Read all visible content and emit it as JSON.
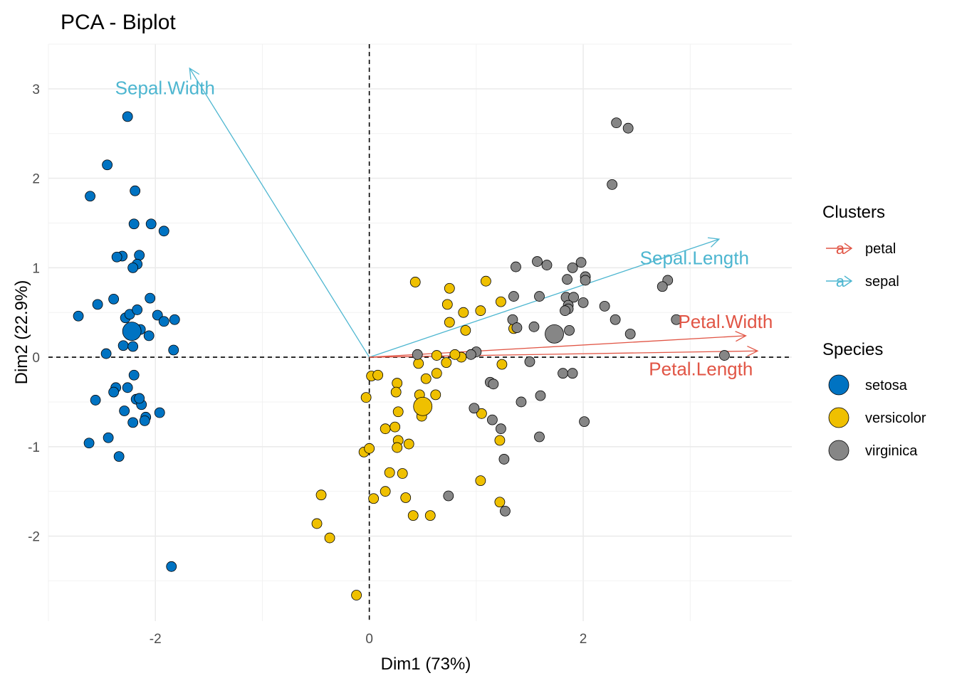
{
  "chart_data": {
    "type": "scatter",
    "title": "PCA - Biplot",
    "xlabel": "Dim1 (73%)",
    "ylabel": "Dim2 (22.9%)",
    "xlim": [
      -3,
      3.95
    ],
    "ylim": [
      -2.95,
      3.5
    ],
    "x_ticks": [
      -2,
      0,
      2
    ],
    "y_ticks": [
      -2,
      -1,
      0,
      1,
      2,
      3
    ],
    "grid": true,
    "reference_lines": {
      "x": 0,
      "y": 0,
      "style": "dashed"
    },
    "legend_position": "right",
    "legends": {
      "clusters": {
        "title": "Clusters",
        "items": [
          {
            "name": "petal",
            "color": "#E15545"
          },
          {
            "name": "sepal",
            "color": "#4DB6D0"
          }
        ]
      },
      "species": {
        "title": "Species",
        "items": [
          {
            "name": "setosa",
            "color": "#0073C2"
          },
          {
            "name": "versicolor",
            "color": "#EFC000"
          },
          {
            "name": "virginica",
            "color": "#868686"
          }
        ]
      }
    },
    "arrows": [
      {
        "label": "Sepal.Width",
        "cluster": "sepal",
        "x": -1.68,
        "y": 3.23
      },
      {
        "label": "Sepal.Length",
        "cluster": "sepal",
        "x": 3.27,
        "y": 1.32
      },
      {
        "label": "Petal.Width",
        "cluster": "petal",
        "x": 3.52,
        "y": 0.24
      },
      {
        "label": "Petal.Length",
        "cluster": "petal",
        "x": 3.63,
        "y": 0.07
      }
    ],
    "arrow_labels": [
      {
        "label": "Sepal.Width",
        "cluster": "sepal",
        "x": -1.91,
        "y": 3.01
      },
      {
        "label": "Sepal.Length",
        "cluster": "sepal",
        "x": 3.04,
        "y": 1.11
      },
      {
        "label": "Petal.Width",
        "cluster": "petal",
        "x": 3.33,
        "y": 0.4
      },
      {
        "label": "Petal.Length",
        "cluster": "petal",
        "x": 3.1,
        "y": -0.13
      }
    ],
    "centroids": [
      {
        "species": "setosa",
        "x": -2.22,
        "y": 0.29
      },
      {
        "species": "versicolor",
        "x": 0.5,
        "y": -0.55
      },
      {
        "species": "virginica",
        "x": 1.73,
        "y": 0.26
      }
    ],
    "series": [
      {
        "name": "setosa",
        "points": [
          [
            -2.26,
            2.69
          ],
          [
            -2.45,
            2.15
          ],
          [
            -2.61,
            1.8
          ],
          [
            -2.19,
            1.86
          ],
          [
            -2.2,
            1.49
          ],
          [
            -2.04,
            1.49
          ],
          [
            -1.92,
            1.41
          ],
          [
            -2.15,
            1.14
          ],
          [
            -2.31,
            1.13
          ],
          [
            -2.36,
            1.12
          ],
          [
            -2.17,
            1.04
          ],
          [
            -2.21,
            1.0
          ],
          [
            -2.05,
            0.66
          ],
          [
            -2.39,
            0.65
          ],
          [
            -2.54,
            0.59
          ],
          [
            -2.72,
            0.46
          ],
          [
            -2.28,
            0.44
          ],
          [
            -2.24,
            0.48
          ],
          [
            -2.17,
            0.53
          ],
          [
            -1.98,
            0.47
          ],
          [
            -1.82,
            0.42
          ],
          [
            -1.92,
            0.4
          ],
          [
            -2.14,
            0.31
          ],
          [
            -2.06,
            0.24
          ],
          [
            -2.3,
            0.13
          ],
          [
            -2.21,
            0.12
          ],
          [
            -2.46,
            0.04
          ],
          [
            -1.83,
            0.08
          ],
          [
            -2.2,
            -0.2
          ],
          [
            -2.26,
            -0.34
          ],
          [
            -2.37,
            -0.34
          ],
          [
            -2.39,
            -0.39
          ],
          [
            -2.18,
            -0.47
          ],
          [
            -2.13,
            -0.53
          ],
          [
            -2.15,
            -0.46
          ],
          [
            -2.56,
            -0.48
          ],
          [
            -2.29,
            -0.6
          ],
          [
            -2.09,
            -0.67
          ],
          [
            -1.96,
            -0.62
          ],
          [
            -2.1,
            -0.71
          ],
          [
            -2.21,
            -0.73
          ],
          [
            -2.62,
            -0.96
          ],
          [
            -2.44,
            -0.9
          ],
          [
            -2.34,
            -1.11
          ],
          [
            -1.85,
            -2.34
          ]
        ]
      },
      {
        "name": "versicolor",
        "points": [
          [
            0.43,
            0.84
          ],
          [
            0.75,
            0.77
          ],
          [
            1.09,
            0.85
          ],
          [
            0.73,
            0.59
          ],
          [
            0.88,
            0.5
          ],
          [
            1.04,
            0.52
          ],
          [
            1.23,
            0.62
          ],
          [
            0.75,
            0.39
          ],
          [
            0.9,
            0.3
          ],
          [
            1.35,
            0.32
          ],
          [
            0.63,
            0.02
          ],
          [
            0.86,
            0.0
          ],
          [
            0.72,
            -0.06
          ],
          [
            0.46,
            -0.07
          ],
          [
            0.8,
            0.03
          ],
          [
            1.24,
            -0.08
          ],
          [
            0.02,
            -0.21
          ],
          [
            0.08,
            -0.2
          ],
          [
            0.26,
            -0.29
          ],
          [
            0.25,
            -0.39
          ],
          [
            0.47,
            -0.42
          ],
          [
            0.62,
            -0.42
          ],
          [
            0.63,
            -0.18
          ],
          [
            0.53,
            -0.24
          ],
          [
            -0.03,
            -0.45
          ],
          [
            0.27,
            -0.61
          ],
          [
            0.49,
            -0.66
          ],
          [
            0.15,
            -0.8
          ],
          [
            0.24,
            -0.78
          ],
          [
            0.27,
            -0.93
          ],
          [
            0.37,
            -0.97
          ],
          [
            0.26,
            -1.01
          ],
          [
            -0.05,
            -1.06
          ],
          [
            0.0,
            -1.02
          ],
          [
            0.19,
            -1.29
          ],
          [
            0.31,
            -1.3
          ],
          [
            0.15,
            -1.5
          ],
          [
            0.34,
            -1.57
          ],
          [
            0.04,
            -1.58
          ],
          [
            -0.45,
            -1.54
          ],
          [
            -0.49,
            -1.86
          ],
          [
            -0.37,
            -2.02
          ],
          [
            -0.12,
            -2.66
          ],
          [
            0.41,
            -1.77
          ],
          [
            0.57,
            -1.77
          ],
          [
            1.05,
            -0.63
          ],
          [
            1.22,
            -0.93
          ],
          [
            1.04,
            -1.38
          ],
          [
            1.22,
            -1.62
          ]
        ]
      },
      {
        "name": "virginica",
        "points": [
          [
            2.31,
            2.62
          ],
          [
            2.42,
            2.56
          ],
          [
            2.27,
            1.93
          ],
          [
            1.57,
            1.07
          ],
          [
            1.37,
            1.01
          ],
          [
            1.66,
            1.03
          ],
          [
            1.9,
            1.0
          ],
          [
            1.98,
            1.06
          ],
          [
            2.02,
            0.9
          ],
          [
            2.02,
            0.86
          ],
          [
            1.85,
            0.87
          ],
          [
            2.79,
            0.86
          ],
          [
            2.74,
            0.79
          ],
          [
            1.35,
            0.68
          ],
          [
            1.59,
            0.68
          ],
          [
            1.84,
            0.67
          ],
          [
            1.91,
            0.67
          ],
          [
            1.86,
            0.58
          ],
          [
            1.86,
            0.54
          ],
          [
            2.0,
            0.61
          ],
          [
            1.83,
            0.52
          ],
          [
            1.34,
            0.42
          ],
          [
            1.54,
            0.34
          ],
          [
            2.2,
            0.57
          ],
          [
            2.3,
            0.42
          ],
          [
            1.38,
            0.33
          ],
          [
            1.87,
            0.3
          ],
          [
            2.44,
            0.26
          ],
          [
            2.87,
            0.42
          ],
          [
            3.32,
            0.02
          ],
          [
            1.0,
            0.06
          ],
          [
            0.95,
            0.03
          ],
          [
            1.13,
            -0.28
          ],
          [
            1.16,
            -0.3
          ],
          [
            1.42,
            -0.5
          ],
          [
            1.6,
            -0.43
          ],
          [
            1.81,
            -0.18
          ],
          [
            1.9,
            -0.18
          ],
          [
            1.5,
            -0.05
          ],
          [
            0.98,
            -0.57
          ],
          [
            1.15,
            -0.7
          ],
          [
            1.23,
            -0.8
          ],
          [
            1.26,
            -1.14
          ],
          [
            1.59,
            -0.89
          ],
          [
            2.01,
            -0.72
          ],
          [
            1.27,
            -1.72
          ],
          [
            0.74,
            -1.55
          ],
          [
            0.45,
            0.03
          ]
        ]
      }
    ]
  }
}
